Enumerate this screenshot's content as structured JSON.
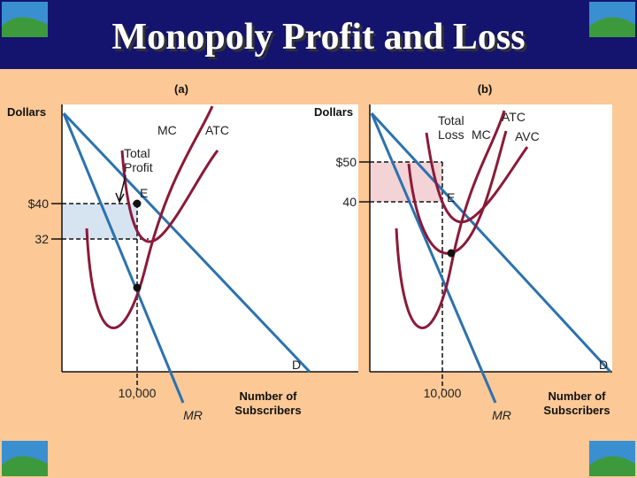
{
  "title": "Monopoly Profit and Loss",
  "panels": [
    {
      "label": "(a)",
      "y_axis": "Dollars",
      "mc": "MC",
      "atc": "ATC",
      "demand": "D",
      "mr": "MR",
      "area": [
        "Total",
        "Profit"
      ],
      "point": "E",
      "y_ticks": [
        "$40",
        "32"
      ],
      "x_tick": "10,000",
      "x_axis": [
        "Number of",
        "Subscribers"
      ]
    },
    {
      "label": "(b)",
      "y_axis": "Dollars",
      "mc": "MC",
      "atc": "ATC",
      "avc": "AVC",
      "demand": "D",
      "mr": "MR",
      "area": [
        "Total",
        "Loss"
      ],
      "point": "E",
      "y_ticks": [
        "$50",
        "40"
      ],
      "x_tick": "10,000",
      "x_axis": [
        "Number of",
        "Subscribers"
      ]
    }
  ]
}
